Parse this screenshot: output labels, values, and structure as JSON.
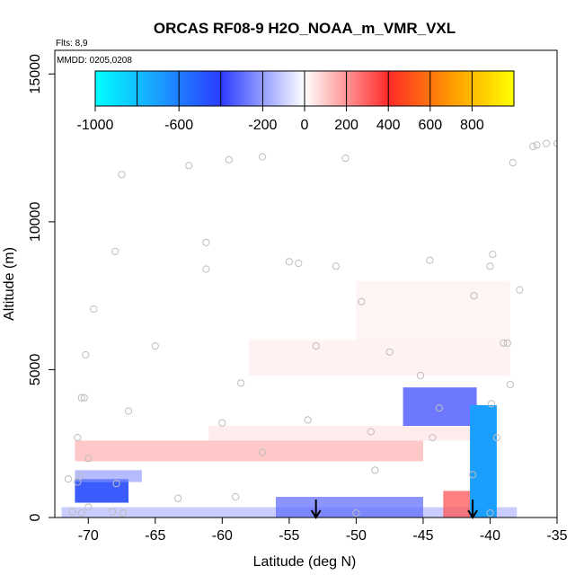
{
  "chart_data": {
    "type": "heatmap",
    "title": "ORCAS RF08-9 H2O_NOAA_m_VMR_VXL",
    "flights_label": "Flts: 8,9",
    "mmdd_label": "MMDD: 0205,0208",
    "xlabel": "Latitude (deg N)",
    "ylabel": "Altitude (m)",
    "xlim": [
      -72.5,
      -35
    ],
    "ylim": [
      0,
      15800
    ],
    "x_ticks": [
      -70,
      -65,
      -60,
      -55,
      -50,
      -45,
      -40,
      -35
    ],
    "x_tick_labels": [
      "-70",
      "-65",
      "-60",
      "-55",
      "-50",
      "-45",
      "-40",
      "-35"
    ],
    "y_ticks": [
      0,
      5000,
      10000,
      15000
    ],
    "y_tick_labels": [
      "0",
      "5000",
      "10000",
      "15000"
    ],
    "colorbar": {
      "range": [
        -1000,
        1000
      ],
      "ticks": [
        -1000,
        -600,
        -200,
        0,
        200,
        400,
        600,
        800
      ],
      "tick_labels": [
        "-1000",
        "-600",
        "-200",
        "0",
        "200",
        "400",
        "600",
        "800"
      ],
      "colors": [
        "#00ffff",
        "#1e90ff",
        "#2233ff",
        "#ffffff",
        "#ff2a2a",
        "#ff9900",
        "#ffff00"
      ]
    },
    "arrows": [
      {
        "lat": -53.0,
        "label": "arrow"
      },
      {
        "lat": -41.3,
        "label": "arrow"
      }
    ],
    "anomaly_regions": [
      {
        "lat_min": -72.0,
        "lat_max": -38.0,
        "alt_min": 0,
        "alt_max": 350,
        "value": -180
      },
      {
        "lat_min": -56.0,
        "lat_max": -45.0,
        "alt_min": 0,
        "alt_max": 700,
        "value": -300
      },
      {
        "lat_min": -71.0,
        "lat_max": -67.0,
        "alt_min": 500,
        "alt_max": 1300,
        "value": -450
      },
      {
        "lat_min": -71.0,
        "lat_max": -66.0,
        "alt_min": 1200,
        "alt_max": 1600,
        "value": -220
      },
      {
        "lat_min": -71.0,
        "lat_max": -45.0,
        "alt_min": 1900,
        "alt_max": 2600,
        "value": 180
      },
      {
        "lat_min": -61.0,
        "lat_max": -41.0,
        "alt_min": 2600,
        "alt_max": 3100,
        "value": 80
      },
      {
        "lat_min": -46.5,
        "lat_max": -41.0,
        "alt_min": 3100,
        "alt_max": 4400,
        "value": -350
      },
      {
        "lat_min": -58.0,
        "lat_max": -38.5,
        "alt_min": 4800,
        "alt_max": 6000,
        "value": 60
      },
      {
        "lat_min": -50.0,
        "lat_max": -38.5,
        "alt_min": 6000,
        "alt_max": 8000,
        "value": 50
      },
      {
        "lat_min": -43.5,
        "lat_max": -41.0,
        "alt_min": 0,
        "alt_max": 900,
        "value": 320
      },
      {
        "lat_min": -41.5,
        "lat_max": -39.5,
        "alt_min": 0,
        "alt_max": 3800,
        "value": -700
      }
    ],
    "observation_points": [
      [
        -67.5,
        11600
      ],
      [
        -62.5,
        11900
      ],
      [
        -59.5,
        12100
      ],
      [
        -57.0,
        12200
      ],
      [
        -50.8,
        12150
      ],
      [
        -38.3,
        12000
      ],
      [
        -36.8,
        12550
      ],
      [
        -36.5,
        12600
      ],
      [
        -35.8,
        12650
      ],
      [
        -35.0,
        12650
      ],
      [
        -68.0,
        9000
      ],
      [
        -61.2,
        9300
      ],
      [
        -61.2,
        8400
      ],
      [
        -55.0,
        8650
      ],
      [
        -54.3,
        8600
      ],
      [
        -51.5,
        8500
      ],
      [
        -44.5,
        8700
      ],
      [
        -40.0,
        8500
      ],
      [
        -39.8,
        8900
      ],
      [
        -41.2,
        7500
      ],
      [
        -37.8,
        7700
      ],
      [
        -69.6,
        7050
      ],
      [
        -49.6,
        7300
      ],
      [
        -65.0,
        5800
      ],
      [
        -53.0,
        5800
      ],
      [
        -47.5,
        5600
      ],
      [
        -39.0,
        5900
      ],
      [
        -38.7,
        5900
      ],
      [
        -70.2,
        5500
      ],
      [
        -45.2,
        4800
      ],
      [
        -38.5,
        4500
      ],
      [
        -58.6,
        4550
      ],
      [
        -70.5,
        4050
      ],
      [
        -70.3,
        4050
      ],
      [
        -67.0,
        3600
      ],
      [
        -60.0,
        3200
      ],
      [
        -53.6,
        3300
      ],
      [
        -43.8,
        3700
      ],
      [
        -39.9,
        3850
      ],
      [
        -48.9,
        2900
      ],
      [
        -44.3,
        2700
      ],
      [
        -70.8,
        2700
      ],
      [
        -39.5,
        2700
      ],
      [
        -57.0,
        2200
      ],
      [
        -70.0,
        2000
      ],
      [
        -48.6,
        1600
      ],
      [
        -71.5,
        1300
      ],
      [
        -70.8,
        1200
      ],
      [
        -70.6,
        1400
      ],
      [
        -67.9,
        1150
      ],
      [
        -41.3,
        1450
      ],
      [
        -63.3,
        650
      ],
      [
        -59.0,
        700
      ],
      [
        -71.2,
        200
      ],
      [
        -70.5,
        150
      ],
      [
        -70.0,
        350
      ],
      [
        -68.2,
        200
      ],
      [
        -67.4,
        150
      ],
      [
        -50.0,
        150
      ],
      [
        -40.0,
        150
      ]
    ]
  }
}
